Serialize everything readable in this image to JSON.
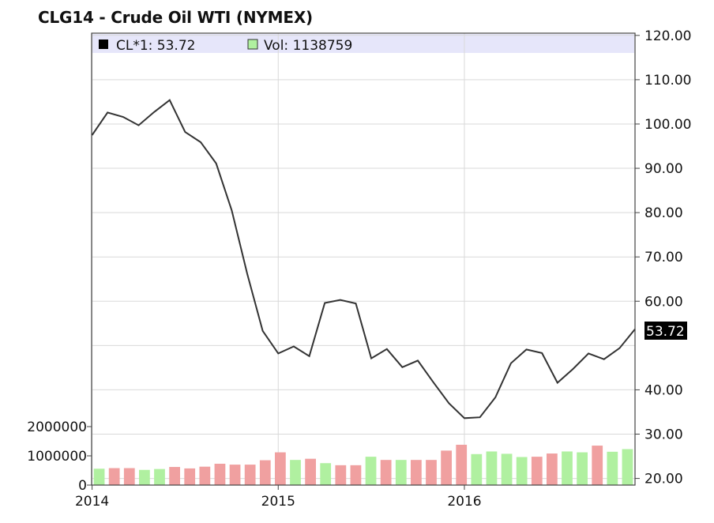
{
  "header": {
    "title": "CLG14 - Crude Oil WTI (NYMEX)"
  },
  "legend": {
    "price_label": "CL*1: 53.72",
    "volume_label": "Vol: 1138759",
    "price_color": "#000000",
    "volume_color": "#b0f0a0"
  },
  "last_value_label": "53.72",
  "chart_data": {
    "type": "line",
    "title": "CLG14 - Crude Oil WTI (NYMEX)",
    "x_tick_labels": [
      "2014",
      "2015",
      "2016"
    ],
    "y_tick_labels": [
      "120.00",
      "110.00",
      "100.00",
      "90.00",
      "80.00",
      "70.00",
      "60.00",
      "40.00",
      "30.00",
      "20.00"
    ],
    "ylim": [
      18.5,
      120.5
    ],
    "grid": true,
    "legend_position": "top-left",
    "x": [
      "2014-01",
      "2014-02",
      "2014-03",
      "2014-04",
      "2014-05",
      "2014-06",
      "2014-07",
      "2014-08",
      "2014-09",
      "2014-10",
      "2014-11",
      "2014-12",
      "2015-01",
      "2015-02",
      "2015-03",
      "2015-04",
      "2015-05",
      "2015-06",
      "2015-07",
      "2015-08",
      "2015-09",
      "2015-10",
      "2015-11",
      "2015-12",
      "2016-01",
      "2016-02",
      "2016-03",
      "2016-04",
      "2016-05",
      "2016-06",
      "2016-07",
      "2016-08",
      "2016-09",
      "2016-10",
      "2016-11",
      "2016-12"
    ],
    "series": [
      {
        "name": "CL*1",
        "values": [
          97.5,
          102.6,
          101.6,
          99.7,
          102.7,
          105.4,
          98.2,
          95.9,
          91.1,
          80.5,
          66.2,
          53.3,
          48.2,
          49.8,
          47.6,
          59.6,
          60.3,
          59.5,
          47.1,
          49.2,
          45.1,
          46.6,
          41.7,
          37.0,
          33.6,
          33.8,
          38.3,
          46.0,
          49.1,
          48.3,
          41.6,
          44.7,
          48.2,
          46.9,
          49.4,
          53.7
        ],
        "color": "#333333"
      },
      {
        "name": "Vol",
        "axis": "volume",
        "volume_tick_labels": [
          "2000000",
          "1000000",
          "0"
        ],
        "values": [
          560000,
          580000,
          580000,
          520000,
          550000,
          620000,
          570000,
          630000,
          730000,
          700000,
          700000,
          850000,
          1120000,
          860000,
          900000,
          750000,
          680000,
          680000,
          970000,
          860000,
          860000,
          860000,
          860000,
          1180000,
          1380000,
          1060000,
          1150000,
          1070000,
          960000,
          970000,
          1080000,
          1150000,
          1120000,
          1350000,
          1140000,
          1230000
        ],
        "up_color": "#b0f0a0",
        "down_color": "#f0a0a0",
        "direction": [
          "up",
          "down",
          "down",
          "up",
          "up",
          "down",
          "down",
          "down",
          "down",
          "down",
          "down",
          "down",
          "down",
          "up",
          "down",
          "up",
          "down",
          "down",
          "up",
          "down",
          "up",
          "down",
          "down",
          "down",
          "down",
          "up",
          "up",
          "up",
          "up",
          "down",
          "down",
          "up",
          "up",
          "down",
          "up",
          "up"
        ]
      }
    ]
  }
}
